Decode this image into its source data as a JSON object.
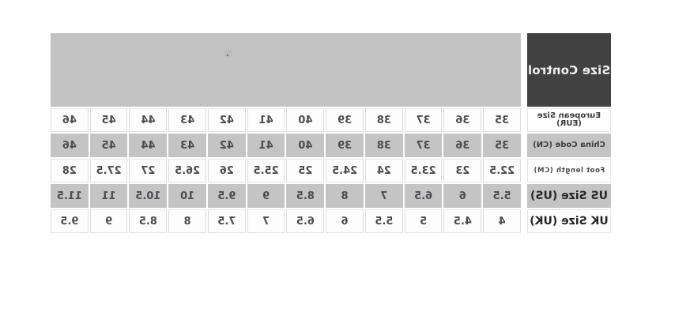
{
  "title": "Size Control",
  "chart_data": {
    "type": "table",
    "title": "Size Control",
    "rows": [
      {
        "label": "European Size (EUR)",
        "values": [
          35,
          36,
          37,
          38,
          39,
          40,
          41,
          42,
          43,
          44,
          45,
          46
        ]
      },
      {
        "label": "China Code (CN)",
        "values": [
          35,
          36,
          37,
          38,
          39,
          40,
          41,
          42,
          43,
          44,
          45,
          46
        ]
      },
      {
        "label": "Foot length (CM)",
        "values": [
          22.5,
          23,
          23.5,
          24,
          24.5,
          25,
          25.5,
          26,
          26.5,
          27,
          27.5,
          28
        ]
      },
      {
        "label": "US Size (US)",
        "values": [
          5.5,
          6,
          6.5,
          7,
          8,
          8.5,
          9,
          9.5,
          10,
          10.5,
          11,
          11.5
        ]
      },
      {
        "label": "UK Size (UK)",
        "values": [
          4,
          4.5,
          5,
          5.5,
          6,
          6.5,
          7,
          7.5,
          8,
          8.5,
          9,
          9.5
        ]
      }
    ]
  },
  "colors": {
    "header_box": "#414141",
    "header_band": "#c3c3c3",
    "shaded_cell": "#c4c4c4",
    "plain_cell": "#fdfdfd",
    "number_text": "#4b4b50",
    "title_text": "#efefef"
  }
}
